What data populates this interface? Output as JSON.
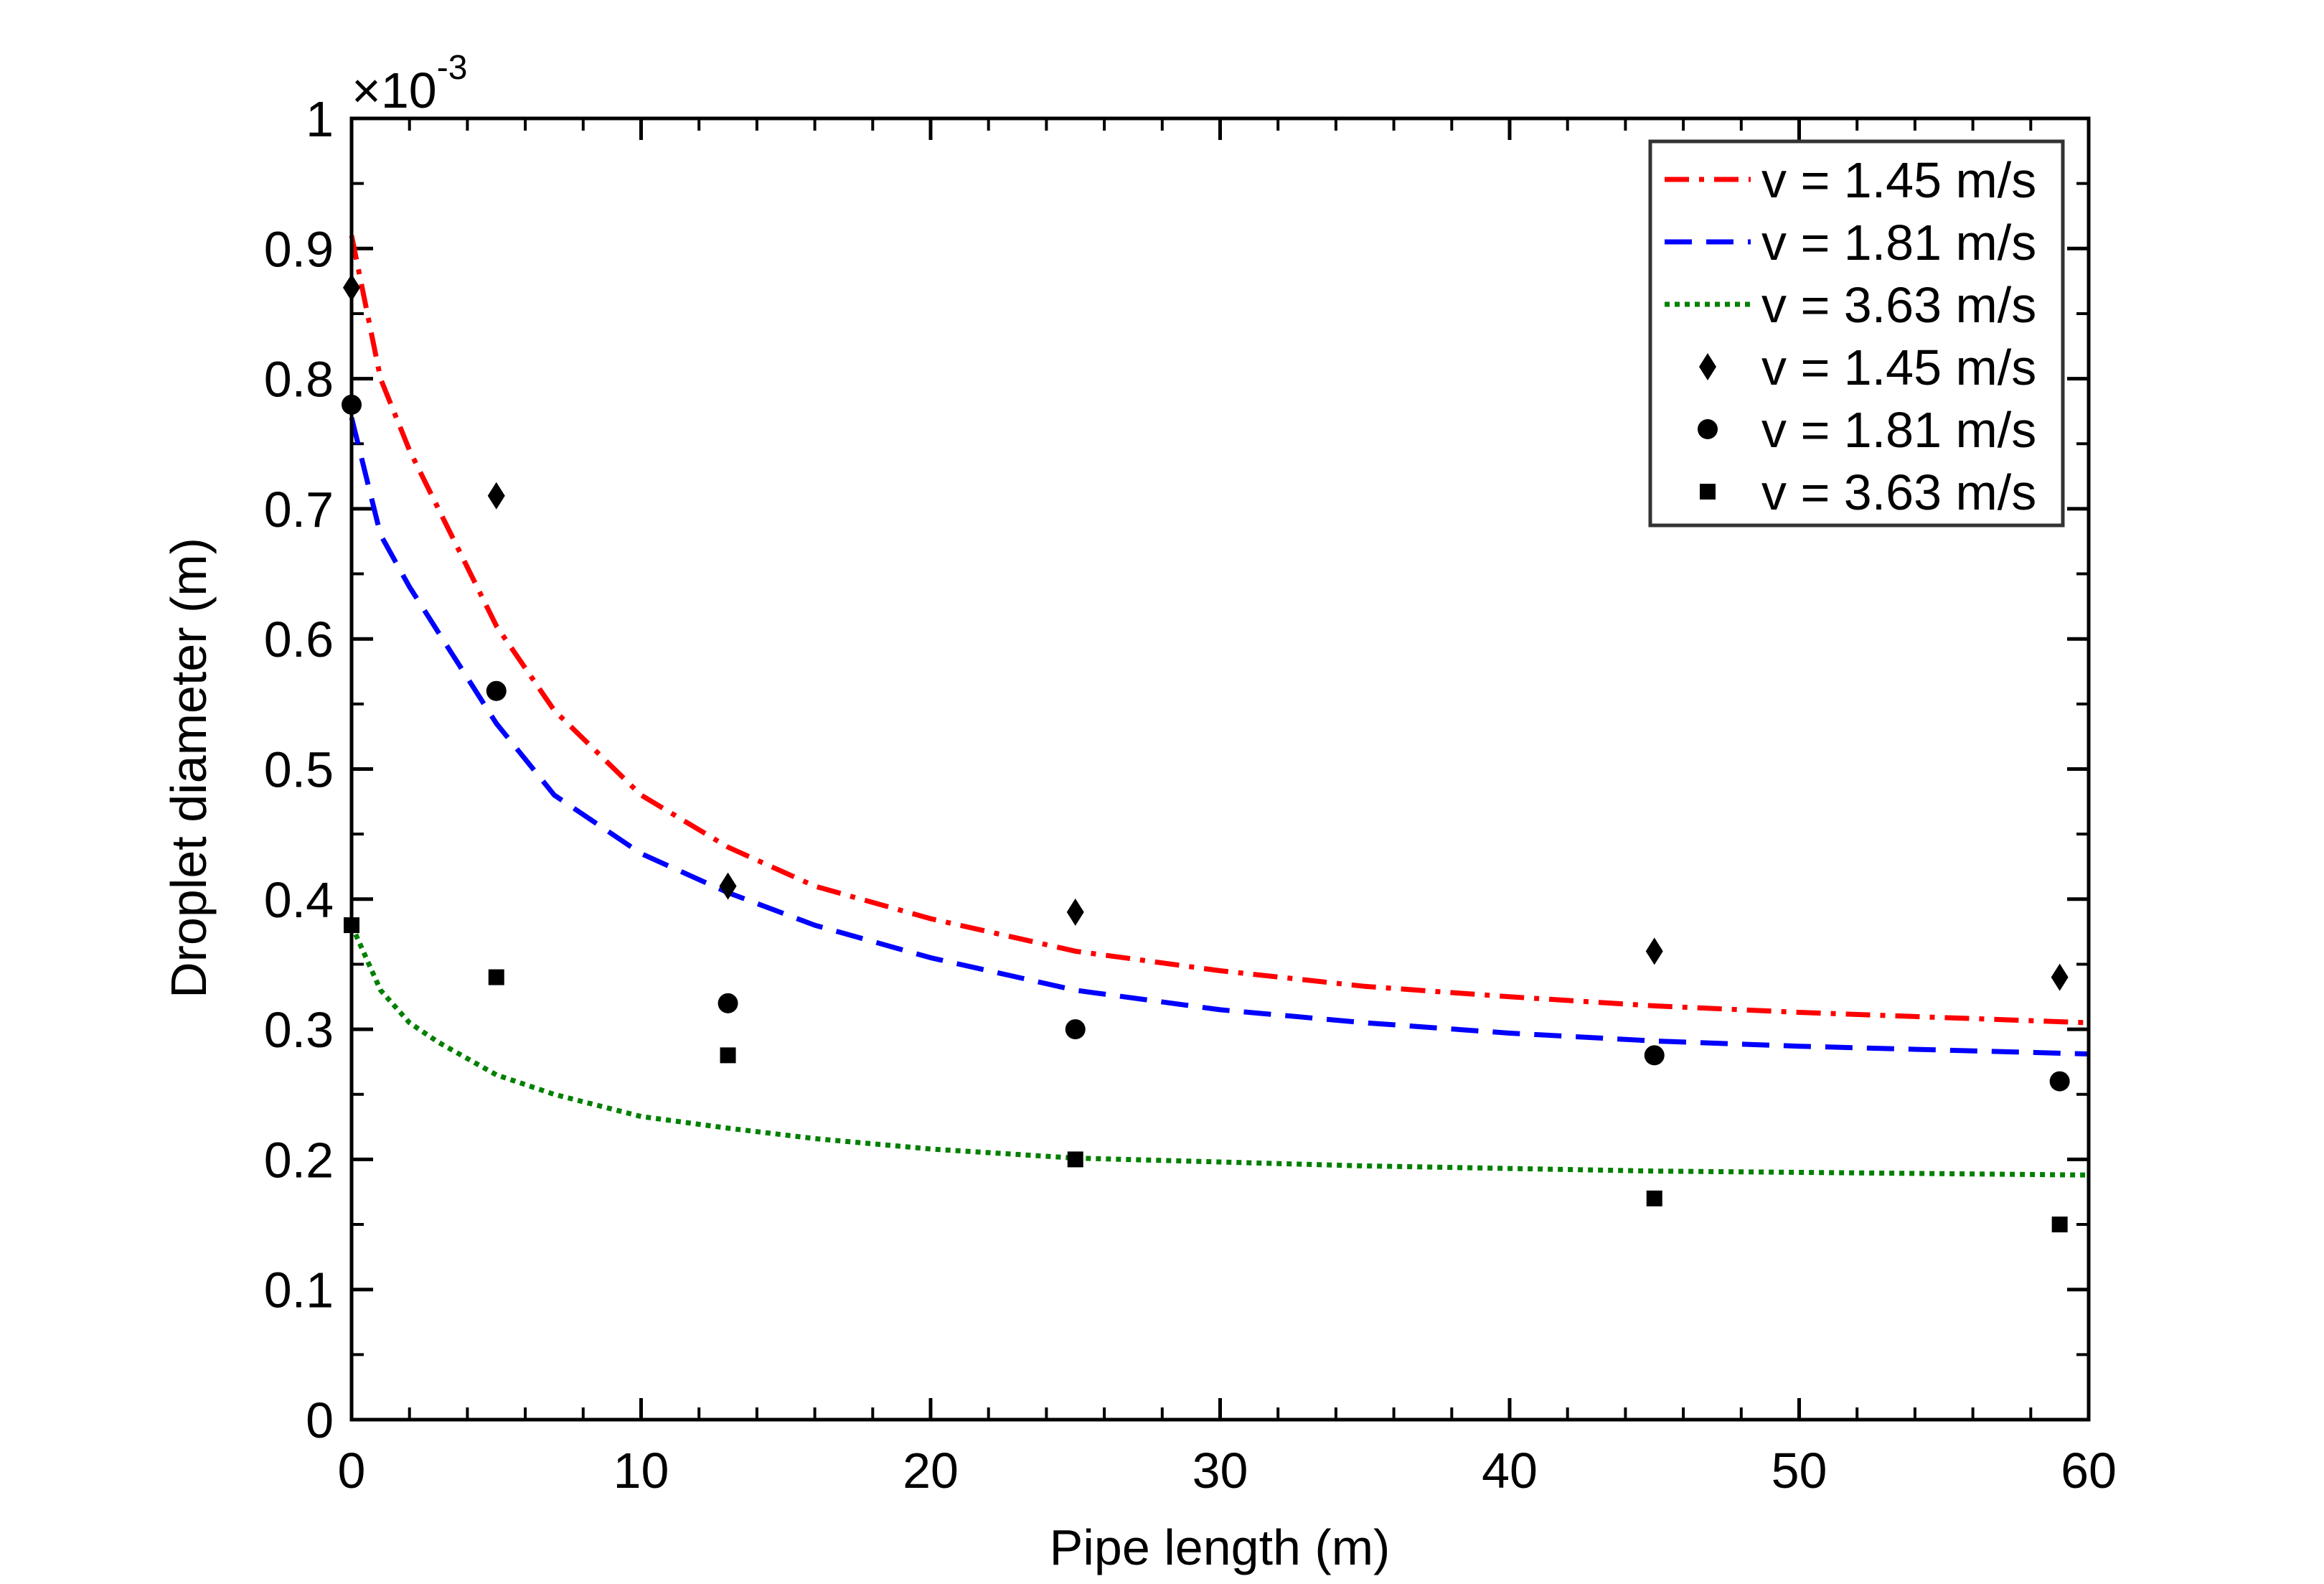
{
  "chart_data": {
    "type": "line",
    "title": "",
    "xlabel": "Pipe length (m)",
    "ylabel": "Droplet diameter (m)",
    "y_multiplier_label": "×10",
    "y_multiplier_exponent": "-3",
    "xlim": [
      0,
      60
    ],
    "ylim": [
      0,
      1
    ],
    "x_ticks": [
      0,
      10,
      20,
      30,
      40,
      50,
      60
    ],
    "x_tick_labels": [
      "0",
      "10",
      "20",
      "30",
      "40",
      "50",
      "60"
    ],
    "y_ticks": [
      0,
      0.1,
      0.2,
      0.3,
      0.4,
      0.5,
      0.6,
      0.7,
      0.8,
      0.9,
      1
    ],
    "y_tick_labels": [
      "0",
      "0.1",
      "0.2",
      "0.3",
      "0.4",
      "0.5",
      "0.6",
      "0.7",
      "0.8",
      "0.9",
      "1"
    ],
    "grid": false,
    "legend_position": "top-right",
    "curve_x": [
      0,
      1,
      2,
      3,
      5,
      7,
      10,
      13,
      16,
      20,
      25,
      30,
      35,
      40,
      45,
      50,
      55,
      60
    ],
    "series": [
      {
        "name": "v = 1.45 m/s",
        "kind": "line",
        "style": "dashdot",
        "color": "#ff0000",
        "values": [
          0.91,
          0.8,
          0.745,
          0.7,
          0.61,
          0.545,
          0.48,
          0.44,
          0.41,
          0.385,
          0.36,
          0.345,
          0.333,
          0.325,
          0.318,
          0.313,
          0.309,
          0.305
        ]
      },
      {
        "name": "v = 1.81 m/s",
        "kind": "line",
        "style": "dashed",
        "color": "#0000ff",
        "values": [
          0.77,
          0.68,
          0.64,
          0.605,
          0.535,
          0.48,
          0.435,
          0.405,
          0.38,
          0.355,
          0.33,
          0.315,
          0.305,
          0.297,
          0.291,
          0.287,
          0.284,
          0.281
        ]
      },
      {
        "name": "v = 3.63 m/s",
        "kind": "line",
        "style": "dotted",
        "color": "#008000",
        "values": [
          0.38,
          0.33,
          0.305,
          0.29,
          0.265,
          0.25,
          0.233,
          0.224,
          0.216,
          0.208,
          0.201,
          0.198,
          0.195,
          0.193,
          0.191,
          0.19,
          0.189,
          0.188
        ]
      },
      {
        "name": "v = 1.45 m/s",
        "kind": "scatter",
        "marker": "diamond",
        "color": "#000000",
        "x": [
          0,
          5,
          13,
          25,
          45,
          59
        ],
        "values": [
          0.87,
          0.71,
          0.41,
          0.39,
          0.36,
          0.34
        ]
      },
      {
        "name": "v = 1.81 m/s",
        "kind": "scatter",
        "marker": "circle",
        "color": "#000000",
        "x": [
          0,
          5,
          13,
          25,
          45,
          59
        ],
        "values": [
          0.78,
          0.56,
          0.32,
          0.3,
          0.28,
          0.26
        ]
      },
      {
        "name": "v = 3.63 m/s",
        "kind": "scatter",
        "marker": "square",
        "color": "#000000",
        "x": [
          0,
          5,
          13,
          25,
          45,
          59
        ],
        "values": [
          0.38,
          0.34,
          0.28,
          0.2,
          0.17,
          0.15
        ]
      }
    ]
  }
}
